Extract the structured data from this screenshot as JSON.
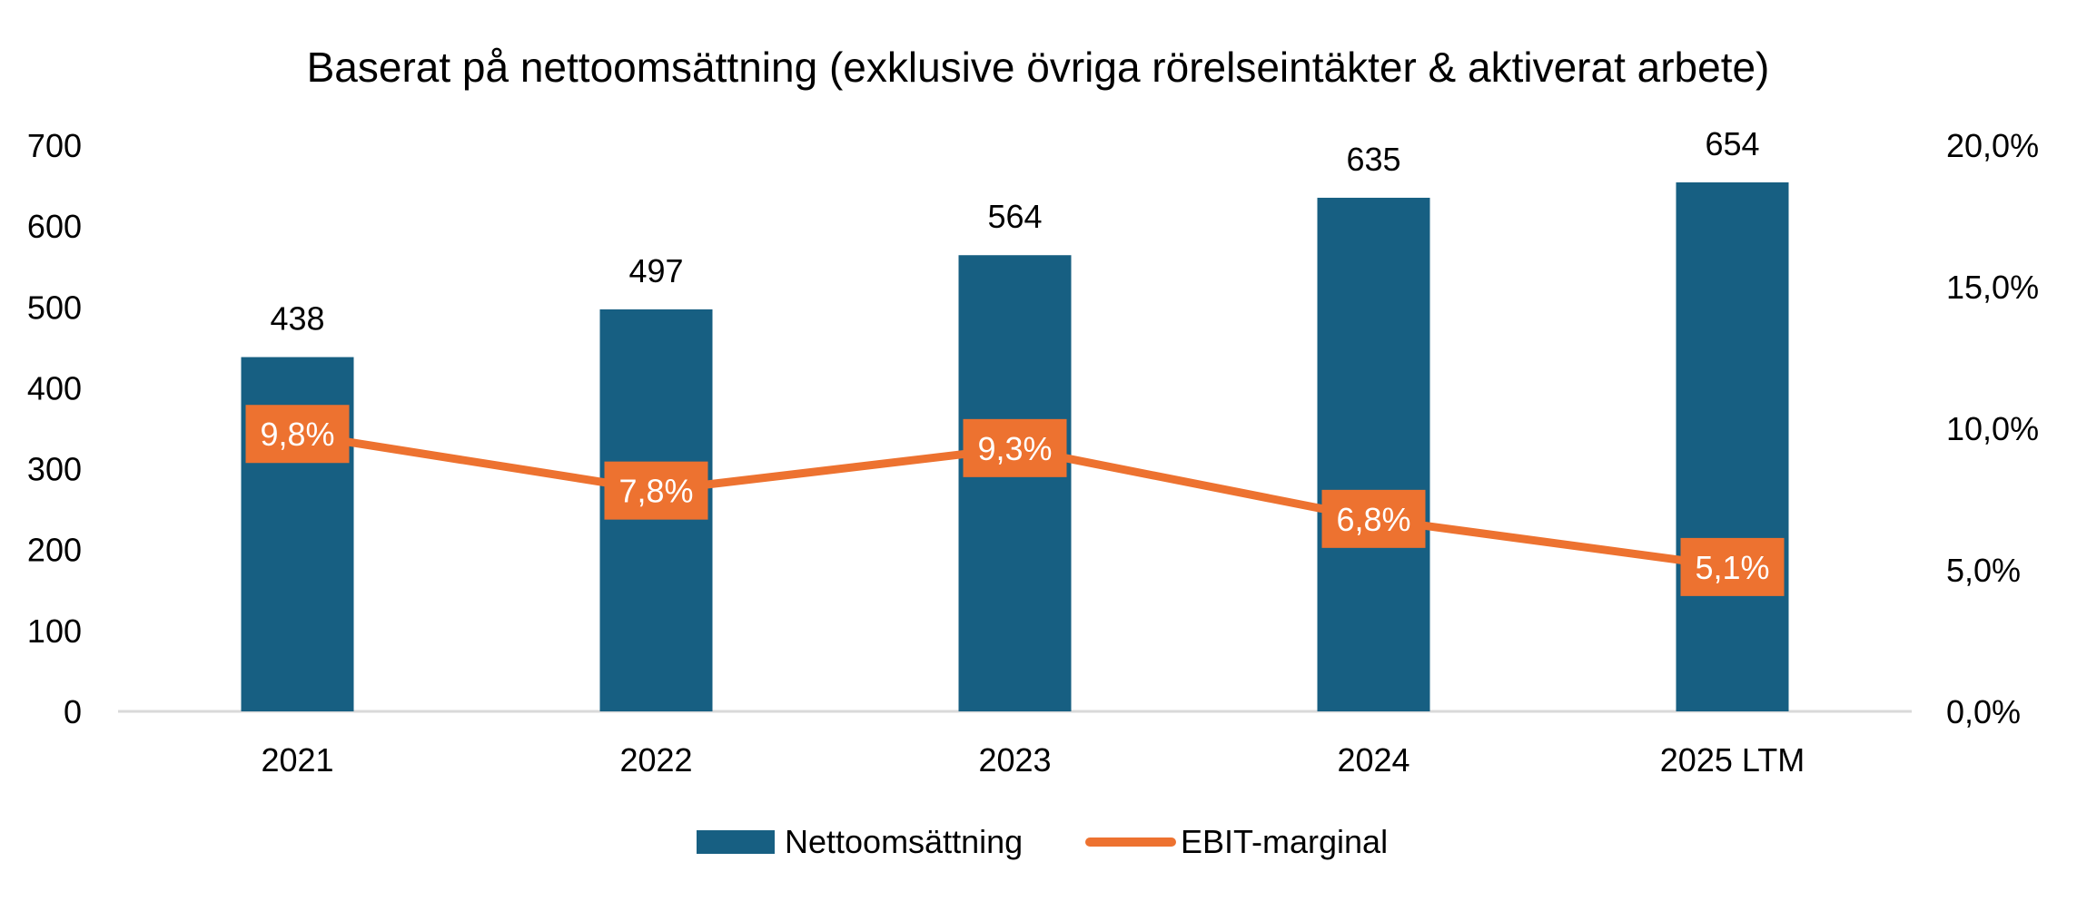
{
  "chart_data": {
    "type": "bar",
    "title": "Baserat på nettoomsättning (exklusive övriga rörelseintäkter & aktiverat arbete)",
    "categories": [
      "2021",
      "2022",
      "2023",
      "2024",
      "2025 LTM"
    ],
    "series": [
      {
        "name": "Nettoomsättning",
        "type": "bar",
        "axis": "left",
        "values": [
          438,
          497,
          564,
          635,
          654
        ],
        "labels": [
          "438",
          "497",
          "564",
          "635",
          "654"
        ],
        "color": "#175f82"
      },
      {
        "name": "EBIT-marginal",
        "type": "line",
        "axis": "right",
        "values": [
          9.8,
          7.8,
          9.3,
          6.8,
          5.1
        ],
        "labels": [
          "9,8%",
          "7,8%",
          "9,3%",
          "6,8%",
          "5,1%"
        ],
        "color": "#ed7230"
      }
    ],
    "y_left": {
      "range": [
        0,
        700
      ],
      "ticks": [
        0,
        100,
        200,
        300,
        400,
        500,
        600,
        700
      ],
      "tick_labels": [
        "0",
        "100",
        "200",
        "300",
        "400",
        "500",
        "600",
        "700"
      ]
    },
    "y_right": {
      "range": [
        0,
        20
      ],
      "ticks": [
        0,
        5,
        10,
        15,
        20
      ],
      "tick_labels": [
        "0,0%",
        "5,0%",
        "10,0%",
        "15,0%",
        "20,0%"
      ]
    },
    "xlabel": "",
    "ylabel": "",
    "grid": false,
    "legend_position": "bottom-center",
    "label_text_color": "#ffffff",
    "text_color": "#000000",
    "axis_line_color": "#d9d9d9"
  }
}
